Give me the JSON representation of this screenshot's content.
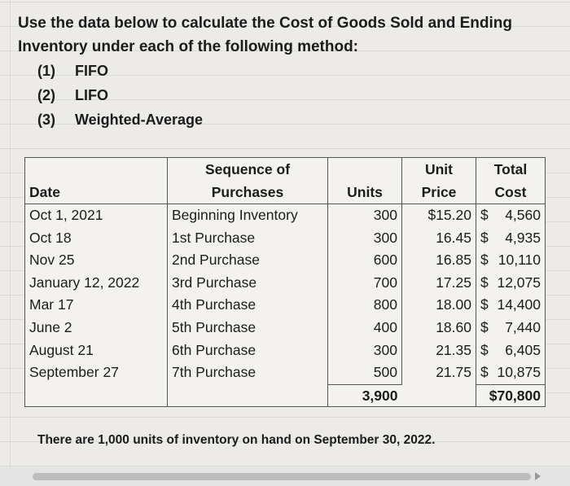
{
  "intro": {
    "heading": "Use the data below to calculate the Cost of Goods Sold and Ending Inventory under each of the following method:",
    "methods": [
      {
        "num": "(1)",
        "label": "FIFO"
      },
      {
        "num": "(2)",
        "label": "LIFO"
      },
      {
        "num": "(3)",
        "label": "Weighted-Average"
      }
    ]
  },
  "table": {
    "headers": {
      "date": "Date",
      "sequence_line1": "Sequence of",
      "sequence_line2": "Purchases",
      "units": "Units",
      "price_line1": "Unit",
      "price_line2": "Price",
      "total_line1": "Total",
      "total_line2": "Cost"
    },
    "rows": [
      {
        "date": "Oct 1, 2021",
        "sequence": "Beginning Inventory",
        "units": "300",
        "price": "$15.20",
        "total_sign": "$",
        "total_value": "4,560"
      },
      {
        "date": "Oct 18",
        "sequence": "1st Purchase",
        "units": "300",
        "price": "16.45",
        "total_sign": "$",
        "total_value": "4,935"
      },
      {
        "date": "Nov 25",
        "sequence": "2nd Purchase",
        "units": "600",
        "price": "16.85",
        "total_sign": "$",
        "total_value": "10,110"
      },
      {
        "date": "January 12, 2022",
        "sequence": "3rd Purchase",
        "units": "700",
        "price": "17.25",
        "total_sign": "$",
        "total_value": "12,075"
      },
      {
        "date": "Mar 17",
        "sequence": "4th Purchase",
        "units": "800",
        "price": "18.00",
        "total_sign": "$",
        "total_value": "14,400"
      },
      {
        "date": "June 2",
        "sequence": "5th Purchase",
        "units": "400",
        "price": "18.60",
        "total_sign": "$",
        "total_value": "7,440"
      },
      {
        "date": "August 21",
        "sequence": "6th Purchase",
        "units": "300",
        "price": "21.35",
        "total_sign": "$",
        "total_value": "6,405"
      },
      {
        "date": "September 27",
        "sequence": "7th Purchase",
        "units": "500",
        "price": "21.75",
        "total_sign": "$",
        "total_value": "10,875"
      }
    ],
    "totals": {
      "units": "3,900",
      "total_cost": "$70,800"
    }
  },
  "note": "There are 1,000 units of inventory on hand on September 30, 2022."
}
